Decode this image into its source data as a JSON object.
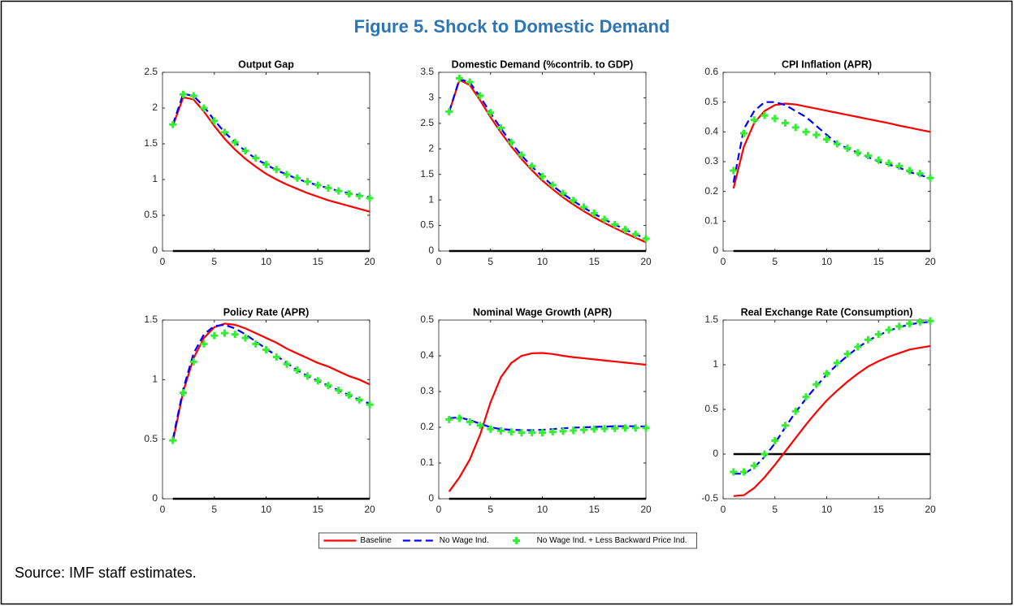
{
  "title": "Figure 5. Shock to Domestic Demand",
  "source": "Source: IMF staff estimates.",
  "chart_data": [
    {
      "type": "line",
      "title": "Output Gap",
      "x": [
        1,
        2,
        3,
        4,
        5,
        6,
        7,
        8,
        9,
        10,
        11,
        12,
        13,
        14,
        15,
        16,
        17,
        18,
        19,
        20
      ],
      "xlim": [
        0,
        20
      ],
      "xticks": [
        0,
        5,
        10,
        15,
        20
      ],
      "ylim": [
        0,
        2.5
      ],
      "yticks": [
        0,
        0.5,
        1,
        1.5,
        2,
        2.5
      ],
      "hline": 0,
      "series": [
        {
          "name": "Baseline",
          "color": "#ff0000",
          "style": "solid",
          "values": [
            1.75,
            2.15,
            2.12,
            1.95,
            1.75,
            1.57,
            1.42,
            1.29,
            1.18,
            1.08,
            1.0,
            0.93,
            0.87,
            0.81,
            0.76,
            0.71,
            0.67,
            0.63,
            0.59,
            0.55
          ]
        },
        {
          "name": "No Wage Ind.",
          "color": "#0000ff",
          "style": "dashed",
          "values": [
            1.77,
            2.2,
            2.17,
            2.02,
            1.83,
            1.66,
            1.52,
            1.4,
            1.29,
            1.21,
            1.13,
            1.07,
            1.01,
            0.96,
            0.92,
            0.88,
            0.84,
            0.81,
            0.78,
            0.75
          ]
        },
        {
          "name": "No Wage Ind. + Less Backward Price Ind.",
          "color": "#33ee33",
          "style": "markers",
          "values": [
            1.77,
            2.19,
            2.17,
            2.0,
            1.82,
            1.66,
            1.52,
            1.4,
            1.3,
            1.21,
            1.14,
            1.07,
            1.02,
            0.97,
            0.92,
            0.88,
            0.84,
            0.8,
            0.77,
            0.74
          ]
        }
      ]
    },
    {
      "type": "line",
      "title": "Domestic Demand (%contrib. to GDP)",
      "x": [
        1,
        2,
        3,
        4,
        5,
        6,
        7,
        8,
        9,
        10,
        11,
        12,
        13,
        14,
        15,
        16,
        17,
        18,
        19,
        20
      ],
      "xlim": [
        0,
        20
      ],
      "xticks": [
        0,
        5,
        10,
        15,
        20
      ],
      "ylim": [
        0,
        3.5
      ],
      "yticks": [
        0,
        0.5,
        1,
        1.5,
        2,
        2.5,
        3,
        3.5
      ],
      "hline": 0,
      "series": [
        {
          "name": "Baseline",
          "color": "#ff0000",
          "style": "solid",
          "values": [
            2.72,
            3.35,
            3.25,
            2.95,
            2.62,
            2.32,
            2.05,
            1.8,
            1.58,
            1.38,
            1.21,
            1.05,
            0.91,
            0.78,
            0.66,
            0.55,
            0.45,
            0.35,
            0.26,
            0.17
          ]
        },
        {
          "name": "No Wage Ind.",
          "color": "#0000ff",
          "style": "dashed",
          "values": [
            2.72,
            3.37,
            3.3,
            3.02,
            2.7,
            2.4,
            2.12,
            1.87,
            1.65,
            1.46,
            1.28,
            1.12,
            0.98,
            0.85,
            0.73,
            0.62,
            0.52,
            0.42,
            0.33,
            0.24
          ]
        },
        {
          "name": "No Wage Ind. + Less Backward Price Ind.",
          "color": "#33ee33",
          "style": "markers",
          "values": [
            2.73,
            3.38,
            3.31,
            3.04,
            2.71,
            2.41,
            2.13,
            1.88,
            1.66,
            1.46,
            1.29,
            1.13,
            0.99,
            0.86,
            0.74,
            0.62,
            0.52,
            0.42,
            0.33,
            0.24
          ]
        }
      ]
    },
    {
      "type": "line",
      "title": "CPI Inflation (APR)",
      "x": [
        1,
        2,
        3,
        4,
        5,
        6,
        7,
        8,
        9,
        10,
        11,
        12,
        13,
        14,
        15,
        16,
        17,
        18,
        19,
        20
      ],
      "xlim": [
        0,
        20
      ],
      "xticks": [
        0,
        5,
        10,
        15,
        20
      ],
      "ylim": [
        0,
        0.6
      ],
      "yticks": [
        0,
        0.1,
        0.2,
        0.3,
        0.4,
        0.5,
        0.6
      ],
      "hline": 0,
      "series": [
        {
          "name": "Baseline",
          "color": "#ff0000",
          "style": "solid",
          "values": [
            0.21,
            0.35,
            0.43,
            0.47,
            0.49,
            0.495,
            0.492,
            0.485,
            0.478,
            0.471,
            0.464,
            0.457,
            0.45,
            0.443,
            0.436,
            0.429,
            0.421,
            0.414,
            0.407,
            0.4
          ]
        },
        {
          "name": "No Wage Ind.",
          "color": "#0000ff",
          "style": "dashed",
          "values": [
            0.23,
            0.41,
            0.47,
            0.5,
            0.5,
            0.49,
            0.47,
            0.45,
            0.42,
            0.39,
            0.36,
            0.345,
            0.33,
            0.315,
            0.3,
            0.29,
            0.28,
            0.265,
            0.255,
            0.245
          ]
        },
        {
          "name": "No Wage Ind. + Less Backward Price Ind.",
          "color": "#33ee33",
          "style": "markers",
          "values": [
            0.27,
            0.395,
            0.44,
            0.455,
            0.445,
            0.43,
            0.415,
            0.4,
            0.39,
            0.375,
            0.36,
            0.345,
            0.33,
            0.32,
            0.305,
            0.295,
            0.285,
            0.27,
            0.26,
            0.245
          ]
        }
      ]
    },
    {
      "type": "line",
      "title": "Policy Rate (APR)",
      "x": [
        1,
        2,
        3,
        4,
        5,
        6,
        7,
        8,
        9,
        10,
        11,
        12,
        13,
        14,
        15,
        16,
        17,
        18,
        19,
        20
      ],
      "xlim": [
        0,
        20
      ],
      "xticks": [
        0,
        5,
        10,
        15,
        20
      ],
      "ylim": [
        0,
        1.5
      ],
      "yticks": [
        0,
        0.5,
        1,
        1.5
      ],
      "hline": 0,
      "series": [
        {
          "name": "Baseline",
          "color": "#ff0000",
          "style": "solid",
          "values": [
            0.48,
            0.9,
            1.18,
            1.35,
            1.44,
            1.47,
            1.46,
            1.43,
            1.39,
            1.35,
            1.31,
            1.26,
            1.22,
            1.18,
            1.14,
            1.11,
            1.07,
            1.03,
            1.0,
            0.96
          ]
        },
        {
          "name": "No Wage Ind.",
          "color": "#0000ff",
          "style": "dashed",
          "values": [
            0.5,
            0.92,
            1.22,
            1.38,
            1.45,
            1.46,
            1.43,
            1.38,
            1.32,
            1.26,
            1.2,
            1.14,
            1.08,
            1.03,
            0.99,
            0.95,
            0.91,
            0.87,
            0.83,
            0.8
          ]
        },
        {
          "name": "No Wage Ind. + Less Backward Price Ind.",
          "color": "#33ee33",
          "style": "markers",
          "values": [
            0.49,
            0.89,
            1.15,
            1.3,
            1.37,
            1.39,
            1.38,
            1.35,
            1.3,
            1.25,
            1.19,
            1.13,
            1.08,
            1.03,
            0.99,
            0.95,
            0.91,
            0.87,
            0.83,
            0.79
          ]
        }
      ]
    },
    {
      "type": "line",
      "title": "Nominal Wage Growth (APR)",
      "x": [
        1,
        2,
        3,
        4,
        5,
        6,
        7,
        8,
        9,
        10,
        11,
        12,
        13,
        14,
        15,
        16,
        17,
        18,
        19,
        20
      ],
      "xlim": [
        0,
        20
      ],
      "xticks": [
        0,
        5,
        10,
        15,
        20
      ],
      "ylim": [
        0,
        0.5
      ],
      "yticks": [
        0,
        0.1,
        0.2,
        0.3,
        0.4,
        0.5
      ],
      "hline": 0,
      "series": [
        {
          "name": "Baseline",
          "color": "#ff0000",
          "style": "solid",
          "values": [
            0.02,
            0.06,
            0.11,
            0.18,
            0.27,
            0.34,
            0.38,
            0.4,
            0.407,
            0.408,
            0.405,
            0.4,
            0.396,
            0.393,
            0.39,
            0.387,
            0.384,
            0.381,
            0.378,
            0.375
          ]
        },
        {
          "name": "No Wage Ind.",
          "color": "#0000ff",
          "style": "dashed",
          "values": [
            0.225,
            0.228,
            0.22,
            0.21,
            0.2,
            0.195,
            0.193,
            0.192,
            0.192,
            0.193,
            0.195,
            0.197,
            0.199,
            0.2,
            0.201,
            0.202,
            0.203,
            0.203,
            0.203,
            0.202
          ]
        },
        {
          "name": "No Wage Ind. + Less Backward Price Ind.",
          "color": "#33ee33",
          "style": "markers",
          "values": [
            0.222,
            0.225,
            0.215,
            0.205,
            0.195,
            0.19,
            0.187,
            0.185,
            0.185,
            0.185,
            0.187,
            0.189,
            0.191,
            0.193,
            0.195,
            0.196,
            0.197,
            0.198,
            0.198,
            0.198
          ]
        }
      ]
    },
    {
      "type": "line",
      "title": "Real Exchange Rate (Consumption)",
      "x": [
        1,
        2,
        3,
        4,
        5,
        6,
        7,
        8,
        9,
        10,
        11,
        12,
        13,
        14,
        15,
        16,
        17,
        18,
        19,
        20
      ],
      "xlim": [
        0,
        20
      ],
      "xticks": [
        0,
        5,
        10,
        15,
        20
      ],
      "ylim": [
        -0.5,
        1.5
      ],
      "yticks": [
        -0.5,
        0,
        0.5,
        1,
        1.5
      ],
      "hline": 0,
      "series": [
        {
          "name": "Baseline",
          "color": "#ff0000",
          "style": "solid",
          "values": [
            -0.47,
            -0.46,
            -0.38,
            -0.26,
            -0.12,
            0.03,
            0.18,
            0.33,
            0.47,
            0.6,
            0.71,
            0.81,
            0.9,
            0.98,
            1.04,
            1.09,
            1.13,
            1.17,
            1.19,
            1.21
          ]
        },
        {
          "name": "No Wage Ind.",
          "color": "#0000ff",
          "style": "dashed",
          "values": [
            -0.22,
            -0.22,
            -0.15,
            -0.03,
            0.12,
            0.3,
            0.47,
            0.62,
            0.76,
            0.89,
            1.0,
            1.1,
            1.19,
            1.27,
            1.33,
            1.38,
            1.42,
            1.45,
            1.47,
            1.48
          ]
        },
        {
          "name": "No Wage Ind. + Less Backward Price Ind.",
          "color": "#33ee33",
          "style": "markers",
          "values": [
            -0.2,
            -0.2,
            -0.13,
            0.0,
            0.15,
            0.32,
            0.48,
            0.64,
            0.78,
            0.9,
            1.02,
            1.12,
            1.2,
            1.28,
            1.34,
            1.39,
            1.43,
            1.46,
            1.48,
            1.49
          ]
        }
      ]
    }
  ]
}
